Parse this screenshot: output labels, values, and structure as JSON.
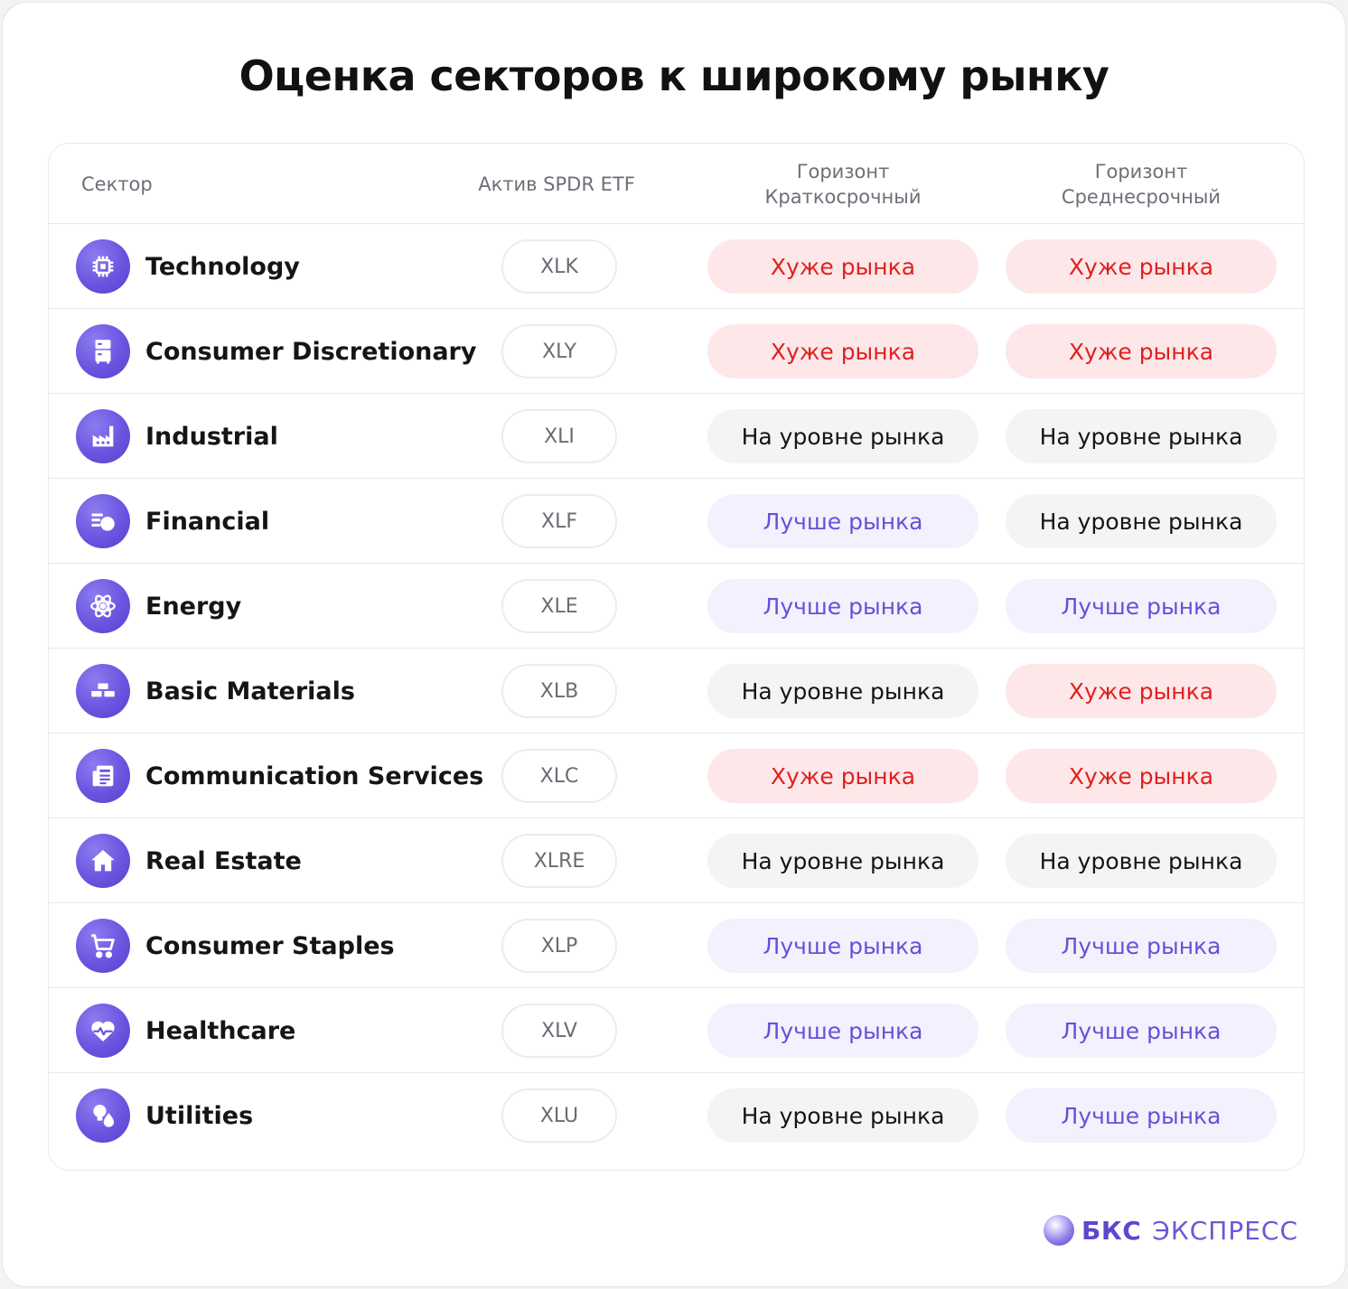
{
  "title": "Оценка секторов к широкому рынку",
  "header": {
    "sector": "Сектор",
    "etf": "Актив SPDR ETF",
    "short_line1": "Горизонт",
    "short_line2": "Краткосрочный",
    "mid_line1": "Горизонт",
    "mid_line2": "Среднесрочный"
  },
  "rows": [
    {
      "sector": "Technology",
      "ticker": "XLK",
      "short": "Хуже рынка",
      "mid": "Хуже рынка",
      "icon": "chip-icon"
    },
    {
      "sector": "Consumer Discretionary",
      "ticker": "XLY",
      "short": "Хуже рынка",
      "mid": "Хуже рынка",
      "icon": "appliance-icon"
    },
    {
      "sector": "Industrial",
      "ticker": "XLI",
      "short": "На уровне рынка",
      "mid": "На уровне рынка",
      "icon": "factory-icon"
    },
    {
      "sector": "Financial",
      "ticker": "XLF",
      "short": "Лучше рынка",
      "mid": "На уровне рынка",
      "icon": "coins-icon"
    },
    {
      "sector": "Energy",
      "ticker": "XLE",
      "short": "Лучше рынка",
      "mid": "Лучше рынка",
      "icon": "atom-icon"
    },
    {
      "sector": "Basic Materials",
      "ticker": "XLB",
      "short": "На уровне рынка",
      "mid": "Хуже рынка",
      "icon": "bricks-icon"
    },
    {
      "sector": "Communication Services",
      "ticker": "XLC",
      "short": "Хуже рынка",
      "mid": "Хуже рынка",
      "icon": "newspaper-icon"
    },
    {
      "sector": "Real Estate",
      "ticker": "XLRE",
      "short": "На уровне рынка",
      "mid": "На уровне рынка",
      "icon": "house-icon"
    },
    {
      "sector": "Consumer Staples",
      "ticker": "XLP",
      "short": "Лучше рынка",
      "mid": "Лучше рынка",
      "icon": "cart-icon"
    },
    {
      "sector": "Healthcare",
      "ticker": "XLV",
      "short": "Лучше рынка",
      "mid": "Лучше рынка",
      "icon": "heart-pulse-icon"
    },
    {
      "sector": "Utilities",
      "ticker": "XLU",
      "short": "На уровне рынка",
      "mid": "Лучше рынка",
      "icon": "bulb-drop-icon"
    }
  ],
  "status_colors": {
    "worse": "#e0211f",
    "equal": "#151515",
    "better": "#6a4fd8",
    "icon_bg": "#6a55e0"
  },
  "brand": {
    "part1": "БКС",
    "part2": "ЭКСПРЕСС"
  }
}
